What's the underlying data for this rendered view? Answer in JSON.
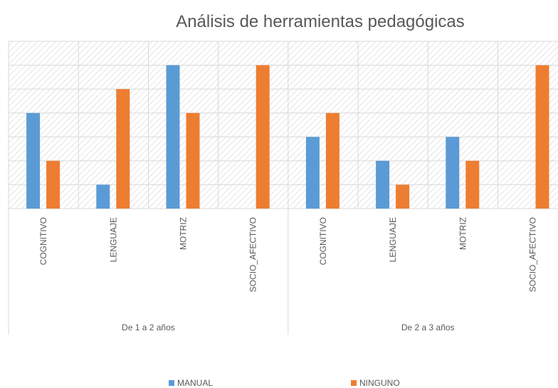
{
  "chart_data": {
    "type": "bar",
    "title": "Análisis de herramientas pedagógicas",
    "categories": [
      "COGNITIVO",
      "LENGUAJE",
      "MOTRIZ",
      "SOCIO_AFECTIVO",
      "COGNITIVO",
      "LENGUAJE",
      "MOTRIZ",
      "SOCIO_AFECTIVO"
    ],
    "groups": [
      "De 1 a 2 años",
      "De 2 a 3 años"
    ],
    "series": [
      {
        "name": "MANUAL",
        "color": "#5b9bd5",
        "values": [
          4,
          1,
          6,
          0,
          3,
          2,
          3,
          0
        ]
      },
      {
        "name": "NINGUNO",
        "color": "#ed7d31",
        "values": [
          2,
          5,
          4,
          6,
          4,
          1,
          2,
          6
        ]
      }
    ],
    "ylim": [
      0,
      7
    ],
    "yticks": [
      0,
      1,
      2,
      3,
      4,
      5,
      6,
      7
    ],
    "grid": true,
    "legend": "bottom"
  }
}
